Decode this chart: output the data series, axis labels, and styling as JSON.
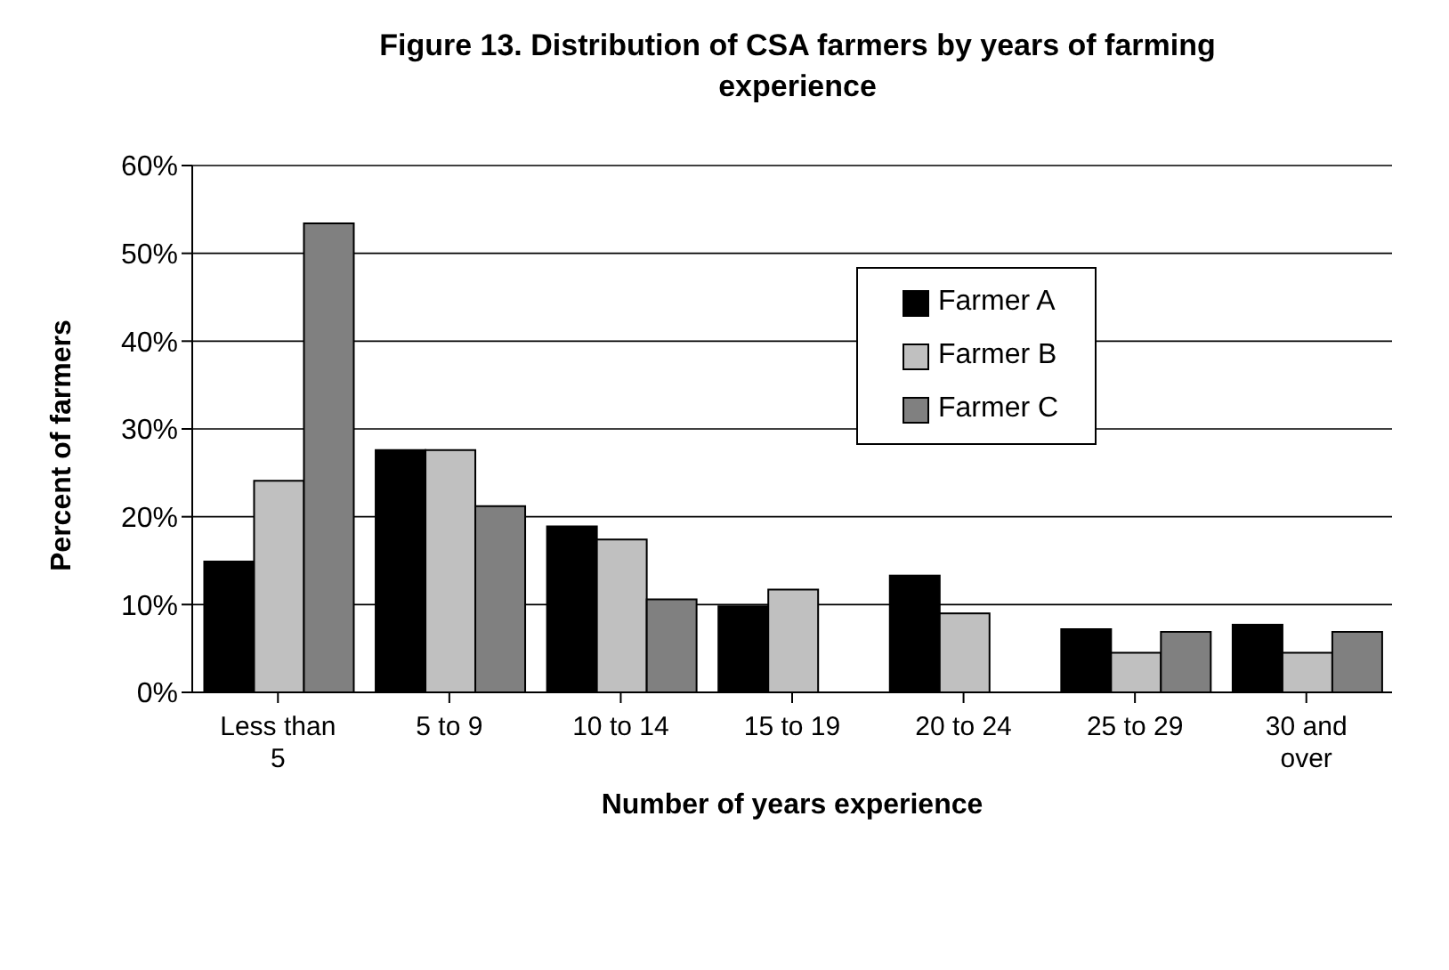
{
  "chart_data": {
    "type": "bar",
    "title": "Figure 13. Distribution of CSA farmers by years of farming experience",
    "xlabel": "Number of years experience",
    "ylabel": "Percent of farmers",
    "categories": [
      "Less than 5",
      "5 to 9",
      "10 to 14",
      "15 to 19",
      "20 to 24",
      "25 to 29",
      "30 and over"
    ],
    "series": [
      {
        "name": "Farmer A",
        "color": "#000000",
        "values": [
          14.9,
          27.6,
          18.9,
          9.8,
          13.3,
          7.2,
          7.7
        ]
      },
      {
        "name": "Farmer B",
        "color": "#c0c0c0",
        "values": [
          24.1,
          27.6,
          17.4,
          11.7,
          9.0,
          4.5,
          4.5
        ]
      },
      {
        "name": "Farmer C",
        "color": "#808080",
        "values": [
          53.4,
          21.2,
          10.6,
          0,
          0,
          6.9,
          6.9
        ]
      }
    ],
    "ylim": [
      0,
      60
    ],
    "yticks": [
      {
        "value": 0,
        "label": "0%"
      },
      {
        "value": 10,
        "label": "10%"
      },
      {
        "value": 20,
        "label": "20%"
      },
      {
        "value": 30,
        "label": "30%"
      },
      {
        "value": 40,
        "label": "40%"
      },
      {
        "value": 50,
        "label": "50%"
      },
      {
        "value": 60,
        "label": "60%"
      }
    ],
    "grid": "y",
    "legend": "top right"
  }
}
